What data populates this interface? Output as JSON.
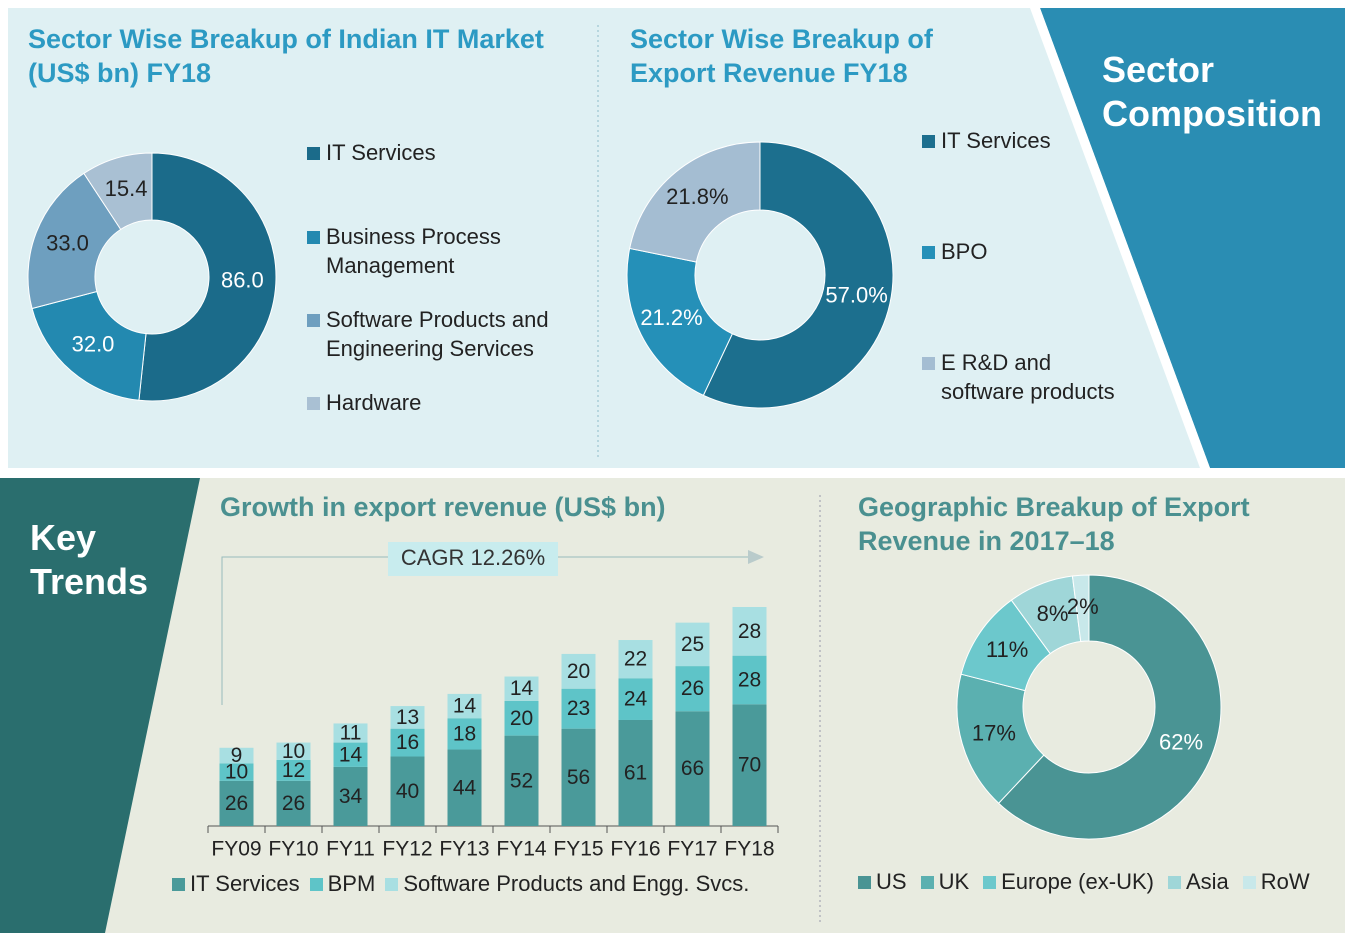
{
  "sections": [
    "Sector Composition",
    "Key Trends"
  ],
  "chart_data": [
    {
      "type": "pie",
      "donut": true,
      "title": "Sector Wise Breakup of Indian IT Market (US$ bn) FY18",
      "categories": [
        "IT Services",
        "Business Process Management",
        "Software Products and Engineering Services",
        "Hardware"
      ],
      "values": [
        86.0,
        32.0,
        33.0,
        15.4
      ],
      "value_labels": [
        "86.0",
        "32.0",
        "33.0",
        "15.4"
      ],
      "colors": [
        "#1b6b8a",
        "#2389b0",
        "#6e9fbf",
        "#a9c0d3"
      ],
      "legend": "right"
    },
    {
      "type": "pie",
      "donut": true,
      "title": "Sector Wise Breakup of Export Revenue FY18",
      "categories": [
        "IT Services",
        "BPO",
        "E R&D and software products"
      ],
      "values": [
        57.0,
        21.2,
        21.8
      ],
      "value_labels": [
        "57.0%",
        "21.2%",
        "21.8%"
      ],
      "colors": [
        "#1c6f8e",
        "#2590b8",
        "#a4bdd2"
      ],
      "legend": "right"
    },
    {
      "type": "stacked_bar",
      "title": "Growth in export revenue (US$ bn)",
      "annotation": "CAGR 12.26%",
      "categories": [
        "FY09",
        "FY10",
        "FY11",
        "FY12",
        "FY13",
        "FY14",
        "FY15",
        "FY16",
        "FY17",
        "FY18"
      ],
      "series": [
        {
          "name": "IT Services",
          "color": "#4a9a9a",
          "values": [
            26,
            26,
            34,
            40,
            44,
            52,
            56,
            61,
            66,
            70
          ]
        },
        {
          "name": "BPM",
          "color": "#5ec4c8",
          "values": [
            10,
            12,
            14,
            16,
            18,
            20,
            23,
            24,
            26,
            28
          ]
        },
        {
          "name": "Software Products and Engg. Svcs.",
          "color": "#a8dfe2",
          "values": [
            9,
            10,
            11,
            13,
            14,
            14,
            20,
            22,
            25,
            28
          ]
        }
      ],
      "legend": "bottom"
    },
    {
      "type": "pie",
      "donut": true,
      "title": "Geographic Breakup of Export Revenue in 2017–18",
      "categories": [
        "US",
        "UK",
        "Europe (ex-UK)",
        "Asia",
        "RoW"
      ],
      "values": [
        62,
        17,
        11,
        8,
        2
      ],
      "value_labels": [
        "62%",
        "17%",
        "11%",
        "8%",
        "2%"
      ],
      "colors": [
        "#4a9494",
        "#5bb0b0",
        "#6cc8cc",
        "#9fd6d8",
        "#c8e8ea"
      ],
      "legend": "bottom"
    }
  ]
}
